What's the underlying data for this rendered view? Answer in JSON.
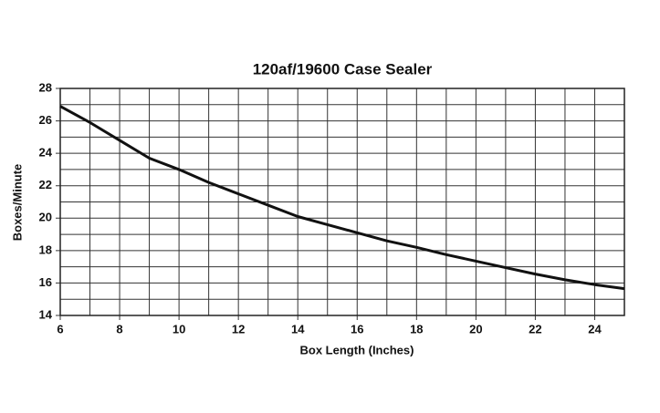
{
  "chart_data": {
    "type": "line",
    "title": "120af/19600 Case Sealer",
    "x_label": "Box Length (Inches)",
    "y_label": "Boxes/Minute",
    "x": [
      6,
      7,
      8,
      9,
      10,
      11,
      12,
      13,
      14,
      15,
      16,
      17,
      18,
      19,
      20,
      21,
      22,
      23,
      24,
      25
    ],
    "series": [
      {
        "color": "#111111",
        "values": [
          26.9,
          25.9,
          24.8,
          23.7,
          23.0,
          22.2,
          21.5,
          20.8,
          20.1,
          19.6,
          19.1,
          18.6,
          18.2,
          17.75,
          17.35,
          16.95,
          16.55,
          16.2,
          15.9,
          15.65
        ]
      }
    ],
    "xlim": [
      6,
      25
    ],
    "ylim": [
      14,
      28
    ],
    "xticks": [
      6,
      8,
      10,
      12,
      14,
      16,
      18,
      20,
      22,
      24
    ],
    "yticks": [
      14,
      16,
      18,
      20,
      22,
      24,
      26,
      28
    ],
    "x_minor_ticks": [
      7,
      9,
      11,
      13,
      15,
      17,
      19,
      21,
      23,
      25
    ],
    "y_minor_ticks": [
      15,
      17,
      19,
      21,
      23,
      25,
      27
    ],
    "grid": true
  }
}
